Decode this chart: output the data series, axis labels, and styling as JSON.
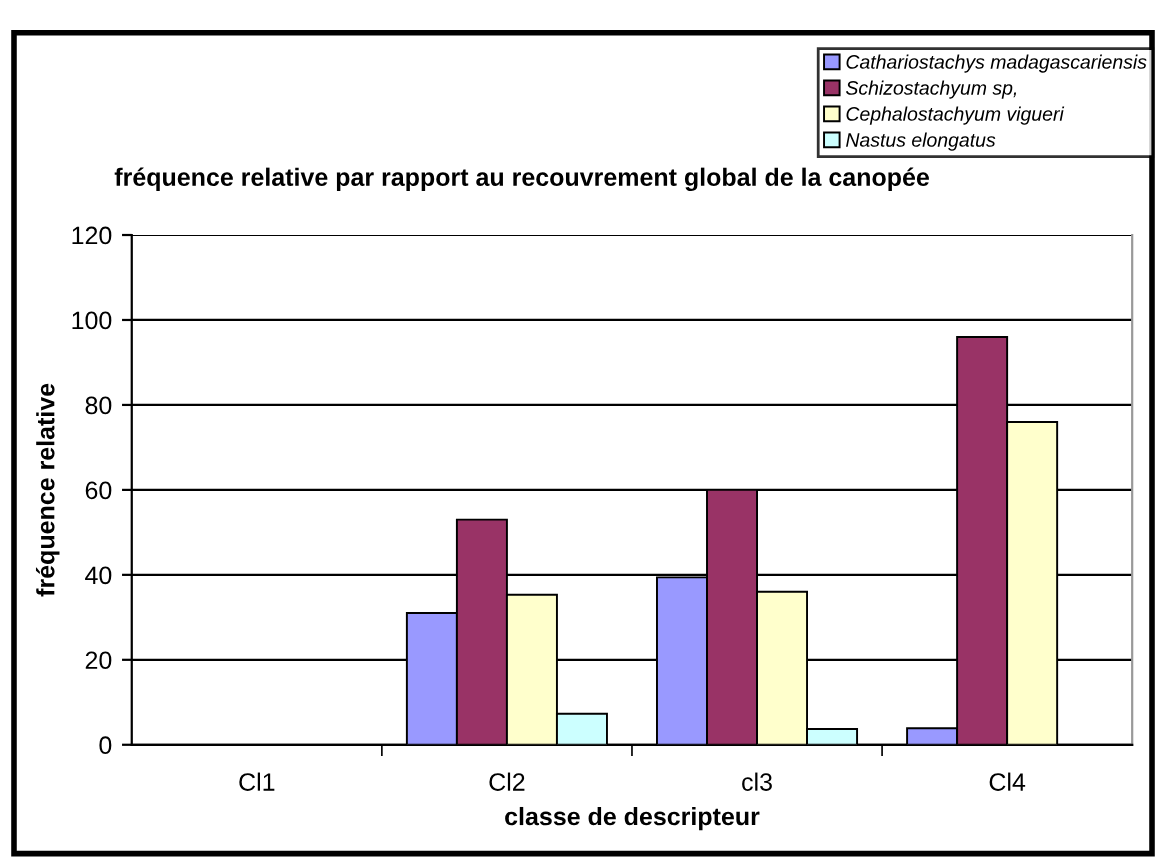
{
  "chart_data": {
    "type": "bar",
    "title": "fréquence relative par rapport au recouvrement global de la canopée",
    "xlabel": "classe de descripteur",
    "ylabel": "fréquence relative",
    "categories": [
      "Cl1",
      "Cl2",
      "cl3",
      "Cl4"
    ],
    "series": [
      {
        "name": "Cathariostachys madagascariensis",
        "color": "#9999ff",
        "values": [
          null,
          31,
          39.4,
          3.9
        ]
      },
      {
        "name": "Schizostachyum sp,",
        "color": "#993366",
        "values": [
          null,
          53,
          60,
          96
        ]
      },
      {
        "name": "Cephalostachyum vigueri",
        "color": "#ffffcc",
        "values": [
          null,
          35.3,
          36,
          76
        ]
      },
      {
        "name": "Nastus elongatus",
        "color": "#ccffff",
        "values": [
          null,
          7.3,
          3.7,
          null
        ]
      }
    ],
    "ylim": [
      0,
      120
    ],
    "yticks": [
      0,
      20,
      40,
      60,
      80,
      100,
      120
    ],
    "grid": "y",
    "legend": "top right"
  }
}
